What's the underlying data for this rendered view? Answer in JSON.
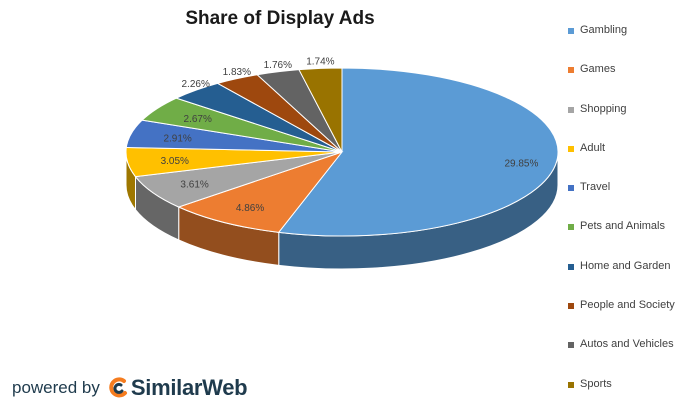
{
  "chart_data": {
    "type": "pie",
    "title": "Share of Display Ads",
    "categories": [
      "Gambling",
      "Games",
      "Shopping",
      "Adult",
      "Travel",
      "Pets and Animals",
      "Home and Garden",
      "People and Society",
      "Autos and Vehicles",
      "Sports"
    ],
    "values": [
      29.85,
      4.86,
      3.61,
      3.05,
      2.91,
      2.67,
      2.26,
      1.83,
      1.76,
      1.74
    ],
    "value_labels": [
      "29.85%",
      "4.86%",
      "3.61%",
      "3.05%",
      "2.91%",
      "2.67%",
      "2.26%",
      "1.83%",
      "1.76%",
      "1.74%"
    ],
    "colors": [
      "#5b9bd5",
      "#ed7d31",
      "#a5a5a5",
      "#ffc000",
      "#4472c4",
      "#70ad47",
      "#255e91",
      "#9e480e",
      "#636363",
      "#997300"
    ],
    "legend": "right",
    "style": "3d"
  },
  "footer": {
    "powered_by": "powered by",
    "brand": "SimilarWeb",
    "logo_icon": "similarweb-logo-icon"
  }
}
